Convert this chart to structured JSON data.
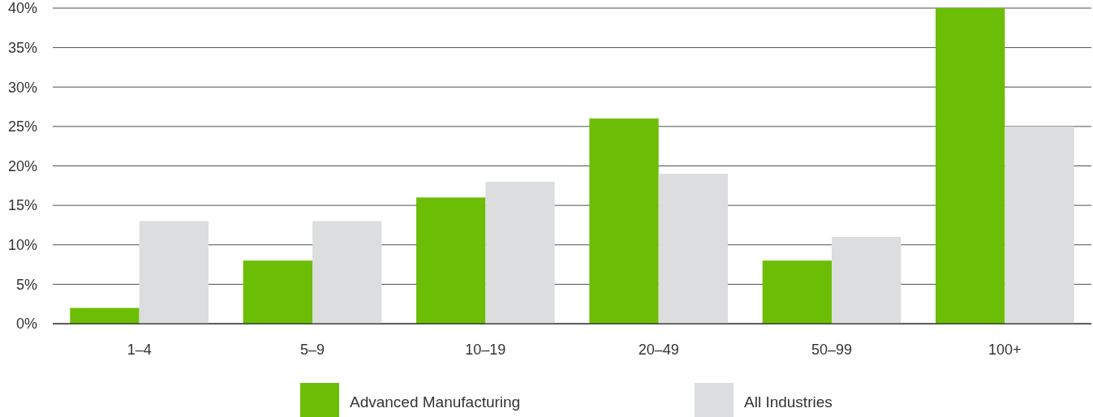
{
  "chart_data": {
    "type": "bar",
    "categories": [
      "1–4",
      "5–9",
      "10–19",
      "20–49",
      "50–99",
      "100+"
    ],
    "series": [
      {
        "name": "Advanced Manufacturing",
        "color": "#6cbd05",
        "values": [
          2,
          8,
          16,
          26,
          8,
          40
        ]
      },
      {
        "name": "All Industries",
        "color": "#dcdddf",
        "values": [
          13,
          13,
          18,
          19,
          11,
          25
        ]
      }
    ],
    "ylim": [
      0,
      40
    ],
    "yticks": [
      {
        "value": 0,
        "label": "0%"
      },
      {
        "value": 5,
        "label": "5%"
      },
      {
        "value": 10,
        "label": "10%"
      },
      {
        "value": 15,
        "label": "15%"
      },
      {
        "value": 20,
        "label": "20%"
      },
      {
        "value": 25,
        "label": "25%"
      },
      {
        "value": 30,
        "label": "30%"
      },
      {
        "value": 35,
        "label": "35%"
      },
      {
        "value": 40,
        "label": "40%"
      }
    ],
    "grid": "y",
    "legend": "bottom"
  }
}
